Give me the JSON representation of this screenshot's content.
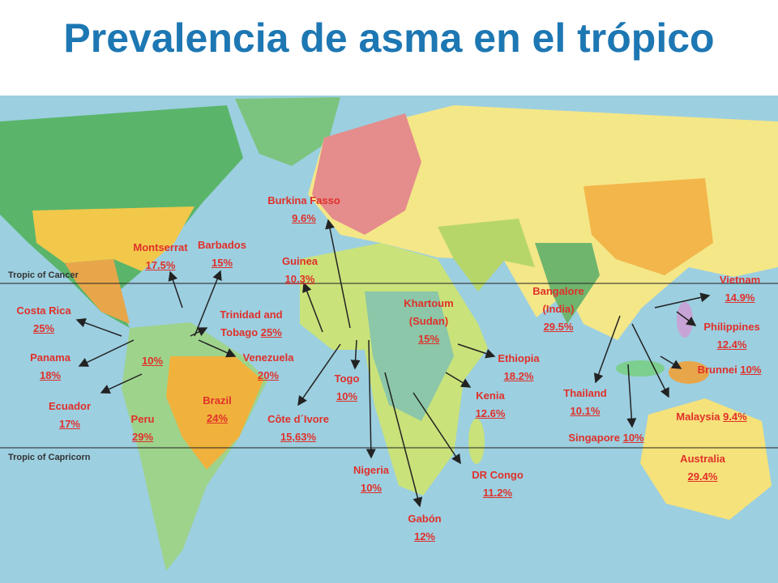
{
  "title": "Prevalencia de asma en el trópico",
  "tropics": {
    "cancer": "Tropic of Cancer",
    "capricorn": "Tropic of Capricorn"
  },
  "labels": [
    {
      "name": "Burkina Fasso",
      "value": "9.6%"
    },
    {
      "name": "Montserrat",
      "value": "17.5%"
    },
    {
      "name": "Barbados",
      "value": "15%"
    },
    {
      "name": "Guinea",
      "value": "10.3%"
    },
    {
      "name": "Costa Rica",
      "value": "25%"
    },
    {
      "name": "Trinidad and Tobago",
      "value": "25%"
    },
    {
      "name": "Panama",
      "value": "18%"
    },
    {
      "value": "10%"
    },
    {
      "name": "Venezuela",
      "value": "20%"
    },
    {
      "name": "Ecuador",
      "value": "17%"
    },
    {
      "name": "Peru",
      "value": "29%"
    },
    {
      "name": "Brazil",
      "value": "24%"
    },
    {
      "name": "Côte d´Ivore",
      "value": "15,63%"
    },
    {
      "name": "Togo",
      "value": "10%"
    },
    {
      "name": "Khartoum (Sudan)",
      "value": "15%"
    },
    {
      "name": "Ethiopia",
      "value": "18.2%"
    },
    {
      "name": "Kenia",
      "value": "12.6%"
    },
    {
      "name": "Nigeria",
      "value": "10%"
    },
    {
      "name": "Gabón",
      "value": "12%"
    },
    {
      "name": "DR Congo",
      "value": "11.2%"
    },
    {
      "name": "Bangalore (India)",
      "value": "29.5%"
    },
    {
      "name": "Vietnam",
      "value": "14.9%"
    },
    {
      "name": "Philippines",
      "value": "12.4%"
    },
    {
      "name": "Brunnei",
      "value": "10%"
    },
    {
      "name": "Thailand",
      "value": "10.1%"
    },
    {
      "name": "Malaysia",
      "value": "9.4%"
    },
    {
      "name": "Singapore",
      "value": "10%"
    },
    {
      "name": "Australia",
      "value": "29.4%"
    }
  ]
}
